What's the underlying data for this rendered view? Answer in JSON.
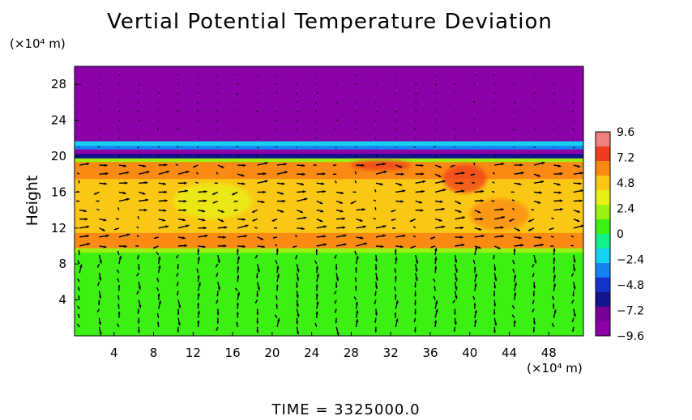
{
  "chart_data": {
    "type": "heatmap",
    "title": "Vertial Potential Temperature Deviation",
    "ylabel": "Height",
    "yunit": "(×10⁴ m)",
    "xunit": "(×10⁴ m)",
    "footer": "TIME = 3325000.0",
    "xlim": [
      0,
      51.5
    ],
    "ylim": [
      0,
      30
    ],
    "x_ticks": [
      "4",
      "8",
      "12",
      "16",
      "20",
      "24",
      "28",
      "32",
      "36",
      "40",
      "44",
      "48"
    ],
    "x_tick_values": [
      4,
      8,
      12,
      16,
      20,
      24,
      28,
      32,
      36,
      40,
      44,
      48
    ],
    "y_ticks": [
      "4",
      "8",
      "12",
      "16",
      "20",
      "24",
      "28"
    ],
    "y_tick_values": [
      4,
      8,
      12,
      16,
      20,
      24,
      28
    ],
    "colorbar": {
      "labels": [
        "9.6",
        "7.2",
        "4.8",
        "2.4",
        "0",
        "−2.4",
        "−4.8",
        "−7.2",
        "−9.6"
      ],
      "values": [
        9.6,
        7.2,
        4.8,
        2.4,
        0,
        -2.4,
        -4.8,
        -7.2,
        -9.6
      ],
      "range": [
        -9.6,
        9.6
      ],
      "colors_top_to_bottom": [
        "#f08080",
        "#f03c1e",
        "#fa8a14",
        "#fac814",
        "#e6f014",
        "#9cf014",
        "#3cf014",
        "#14f08c",
        "#14d2f0",
        "#1482f0",
        "#1432c8",
        "#14148c",
        "#780096",
        "#8c00a8"
      ]
    },
    "field_bands": [
      {
        "y0": 0,
        "y1": 9.3,
        "value": 0.3
      },
      {
        "y0": 9.3,
        "y1": 9.8,
        "value": 2.6
      },
      {
        "y0": 9.8,
        "y1": 11.5,
        "value": 5.5
      },
      {
        "y0": 11.5,
        "y1": 17.5,
        "value": 4.2
      },
      {
        "y0": 17.5,
        "y1": 19.4,
        "value": 5.8
      },
      {
        "y0": 19.4,
        "y1": 19.8,
        "value": 2.0
      },
      {
        "y0": 19.8,
        "y1": 20.3,
        "value": -5.5
      },
      {
        "y0": 20.3,
        "y1": 20.8,
        "value": -8.6
      },
      {
        "y0": 20.8,
        "y1": 21.2,
        "value": -3.5
      },
      {
        "y0": 21.2,
        "y1": 21.7,
        "value": -1.6
      },
      {
        "y0": 21.7,
        "y1": 30,
        "value": -9.6
      }
    ],
    "warm_anomalies": [
      {
        "x": 39.5,
        "y": 17.5,
        "rx": 2.2,
        "ry": 1.6,
        "value": 7.5
      },
      {
        "x": 43,
        "y": 13.5,
        "rx": 3,
        "ry": 1.8,
        "value": 6.8
      },
      {
        "x": 31,
        "y": 19,
        "rx": 3,
        "ry": 0.6,
        "value": 7.2
      },
      {
        "x": 14,
        "y": 15,
        "rx": 4,
        "ry": 2,
        "value": 3.6
      }
    ],
    "vector_grid": {
      "x": [
        0.5,
        2.5,
        4.5,
        6.5,
        8.5,
        10.5,
        12.5,
        14.5,
        16.5,
        18.5,
        20.5,
        22.5,
        24.5,
        26.5,
        28.5,
        30.5,
        32.5,
        34.5,
        36.5,
        38.5,
        40.5,
        42.5,
        44.5,
        46.5,
        48.5,
        50.5
      ],
      "y": [
        1,
        2,
        3,
        4,
        5,
        6,
        7,
        8,
        9,
        10,
        11,
        12,
        13,
        14,
        15,
        16,
        17,
        18,
        19,
        20,
        21,
        22,
        23,
        24,
        25,
        26,
        27,
        28,
        29
      ],
      "pattern": [
        {
          "y_min": 0,
          "y_max": 9.5,
          "u": 0.0,
          "v": 1.0,
          "variation": "alternating_columns"
        },
        {
          "y_min": 9.5,
          "y_max": 19.5,
          "u": 1.1,
          "v": -0.2,
          "variation": "convergent_cells"
        },
        {
          "y_min": 19.5,
          "y_max": 30,
          "u": 0.15,
          "v": 0.05,
          "variation": "weak"
        }
      ]
    }
  }
}
